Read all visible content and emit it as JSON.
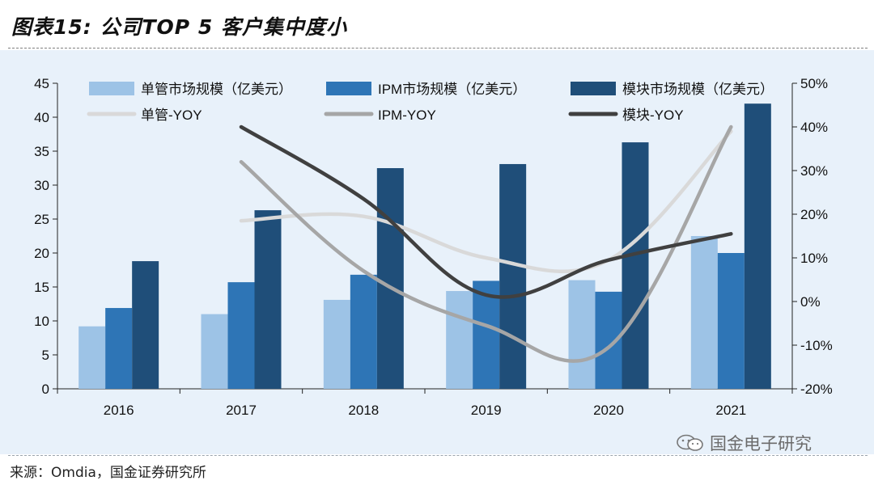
{
  "title": "图表15: 公司TOP 5 客户集中度小",
  "source": "来源：Omdia，国金证券研究所",
  "watermark": "国金电子研究",
  "colors": {
    "single_bar": "#9dc3e6",
    "ipm_bar": "#2e75b6",
    "module_bar": "#1f4e79",
    "single_line": "#d9d9d9",
    "ipm_line": "#a6a6a6",
    "module_line": "#404040",
    "background": "#e8f1fa"
  },
  "chart_data": {
    "type": "bar",
    "categories": [
      "2016",
      "2017",
      "2018",
      "2019",
      "2020",
      "2021"
    ],
    "left_axis": {
      "min": 0,
      "max": 45,
      "step": 5,
      "ticks": [
        "0",
        "5",
        "10",
        "15",
        "20",
        "25",
        "30",
        "35",
        "40",
        "45"
      ]
    },
    "right_axis": {
      "min": -20,
      "max": 50,
      "step": 10,
      "ticks": [
        "-20%",
        "-10%",
        "0%",
        "10%",
        "20%",
        "30%",
        "40%",
        "50%"
      ]
    },
    "series": [
      {
        "name": "单管市场规模（亿美元）",
        "type": "bar",
        "axis": "left",
        "values": [
          9.2,
          11.0,
          13.1,
          14.4,
          16.0,
          22.5
        ]
      },
      {
        "name": "IPM市场规模（亿美元）",
        "type": "bar",
        "axis": "left",
        "values": [
          11.9,
          15.7,
          16.8,
          15.9,
          14.3,
          20.0
        ]
      },
      {
        "name": "模块市场规模（亿美元）",
        "type": "bar",
        "axis": "left",
        "values": [
          18.8,
          26.3,
          32.5,
          33.1,
          36.3,
          42.0
        ]
      },
      {
        "name": "单管-YOY",
        "type": "line",
        "axis": "right",
        "values": [
          null,
          18.5,
          19.5,
          10.0,
          9.5,
          39.0
        ]
      },
      {
        "name": "IPM-YOY",
        "type": "line",
        "axis": "right",
        "values": [
          null,
          32.0,
          7.0,
          -5.5,
          -10.5,
          40.0
        ]
      },
      {
        "name": "模块-YOY",
        "type": "line",
        "axis": "right",
        "values": [
          null,
          40.0,
          23.5,
          1.5,
          9.5,
          15.5
        ]
      }
    ],
    "legend_position": "top",
    "grid": false
  }
}
